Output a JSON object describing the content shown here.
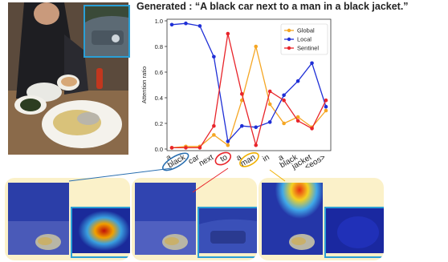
{
  "caption": "Generated : “A black car next to a man in a black jacket.”",
  "colors": {
    "global": "#f5a623",
    "local": "#1f2fd6",
    "sentinel": "#e8242a",
    "highlight_local": "#2a6fb0",
    "highlight_sentinel": "#e8242a",
    "highlight_global": "#f0b000",
    "panel_bg": "#fbf1c9",
    "inset_border": "#2a9fd6"
  },
  "chart_data": {
    "type": "line",
    "x": [
      "a",
      "black",
      "car",
      "next",
      "to",
      "a",
      "man",
      "in",
      "a",
      "black",
      "jacket",
      "<eos>"
    ],
    "ylabel": "Attention ratio",
    "ylim": [
      0,
      1.0
    ],
    "yticks": [
      "0.0",
      "0.2",
      "0.4",
      "0.6",
      "0.8",
      "1.0"
    ],
    "grid": false,
    "legend_position": "top-right",
    "series": [
      {
        "name": "Global",
        "color": "#f5a623",
        "values": [
          0.01,
          0.02,
          0.02,
          0.11,
          0.03,
          0.38,
          0.8,
          0.35,
          0.2,
          0.25,
          0.17,
          0.3
        ]
      },
      {
        "name": "Local",
        "color": "#1f2fd6",
        "values": [
          0.97,
          0.98,
          0.96,
          0.72,
          0.06,
          0.18,
          0.17,
          0.21,
          0.42,
          0.53,
          0.67,
          0.33
        ]
      },
      {
        "name": "Sentinel",
        "color": "#e8242a",
        "values": [
          0.01,
          0.01,
          0.01,
          0.18,
          0.9,
          0.43,
          0.03,
          0.45,
          0.38,
          0.22,
          0.16,
          0.38
        ]
      }
    ],
    "highlighted_words": [
      {
        "index": 1,
        "color": "#2a6fb0"
      },
      {
        "index": 4,
        "color": "#e8242a"
      },
      {
        "index": 6,
        "color": "#f0b000"
      }
    ]
  }
}
